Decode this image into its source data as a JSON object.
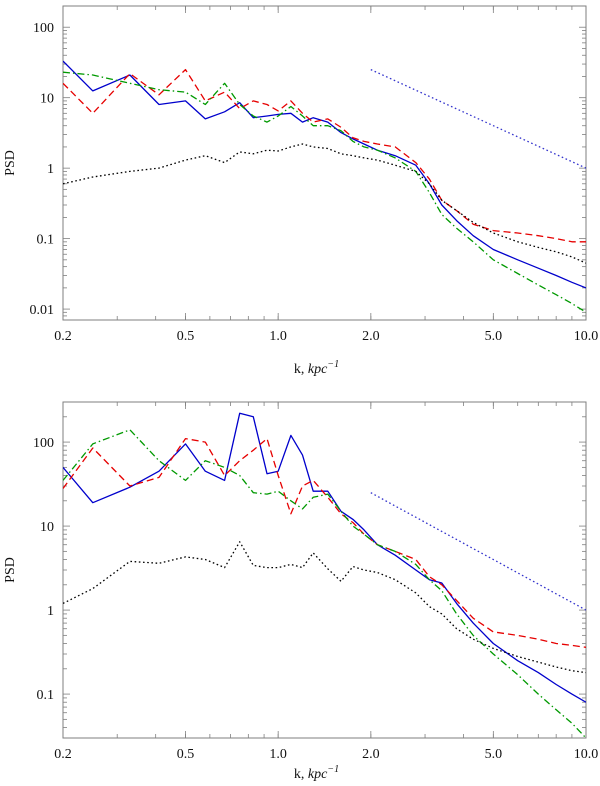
{
  "chart_data": [
    {
      "type": "line",
      "title": "",
      "xlabel": "k, ",
      "xlabel_italic": "kpc",
      "xlabel_sup": "−1",
      "ylabel": "PSD",
      "xscale": "log",
      "yscale": "log",
      "xlim": [
        0.2,
        10.0
      ],
      "ylim": [
        0.007,
        200
      ],
      "x_ticks": [
        {
          "value": 0.2,
          "label": "0.2"
        },
        {
          "value": 0.5,
          "label": "0.5"
        },
        {
          "value": 1.0,
          "label": "1.0"
        },
        {
          "value": 2.0,
          "label": "2.0"
        },
        {
          "value": 5.0,
          "label": "5.0"
        },
        {
          "value": 10.0,
          "label": "10.0"
        }
      ],
      "y_ticks": [
        {
          "value": 0.01,
          "label": "0.01"
        },
        {
          "value": 0.1,
          "label": "0.1"
        },
        {
          "value": 1,
          "label": "1"
        },
        {
          "value": 10,
          "label": "10"
        },
        {
          "value": 100,
          "label": "100"
        }
      ],
      "series": [
        {
          "name": "blue-solid",
          "color": "#0000cc",
          "dash": "",
          "x": [
            0.2,
            0.25,
            0.33,
            0.41,
            0.5,
            0.58,
            0.67,
            0.75,
            0.83,
            0.92,
            1.0,
            1.1,
            1.2,
            1.3,
            1.45,
            1.6,
            1.75,
            1.9,
            2.1,
            2.4,
            2.8,
            3.1,
            3.4,
            3.8,
            4.3,
            5.0,
            6.0,
            7.0,
            8.0,
            9.0,
            10.0
          ],
          "y": [
            33,
            12.5,
            21,
            8,
            9,
            5,
            6.3,
            8.5,
            5.2,
            5.5,
            5.8,
            6,
            4.5,
            5.2,
            4.5,
            3.2,
            2.6,
            2.2,
            1.8,
            1.5,
            1.1,
            0.6,
            0.3,
            0.18,
            0.11,
            0.07,
            0.05,
            0.038,
            0.03,
            0.024,
            0.02
          ]
        },
        {
          "name": "red-dashed",
          "color": "#e60000",
          "dash": "7,4",
          "x": [
            0.2,
            0.25,
            0.33,
            0.41,
            0.5,
            0.58,
            0.67,
            0.75,
            0.83,
            0.92,
            1.0,
            1.1,
            1.2,
            1.3,
            1.45,
            1.6,
            1.75,
            1.9,
            2.1,
            2.4,
            2.8,
            3.1,
            3.4,
            3.8,
            4.3,
            5.0,
            6.0,
            7.0,
            8.0,
            9.0,
            10.0
          ],
          "y": [
            16,
            6,
            22,
            11,
            25,
            9,
            12,
            7,
            9,
            8,
            6.5,
            9,
            6,
            4.5,
            5,
            3.8,
            2.7,
            2.4,
            2.2,
            2.0,
            1.2,
            0.7,
            0.35,
            0.25,
            0.16,
            0.13,
            0.12,
            0.11,
            0.1,
            0.09,
            0.09
          ]
        },
        {
          "name": "green-dashdot",
          "color": "#009900",
          "dash": "7,3,1.5,3",
          "x": [
            0.2,
            0.25,
            0.33,
            0.41,
            0.5,
            0.58,
            0.67,
            0.75,
            0.83,
            0.92,
            1.0,
            1.1,
            1.2,
            1.3,
            1.45,
            1.6,
            1.75,
            1.9,
            2.1,
            2.4,
            2.8,
            3.1,
            3.4,
            3.8,
            4.3,
            5.0,
            6.0,
            7.0,
            8.0,
            9.0,
            10.0
          ],
          "y": [
            23,
            21,
            16,
            13,
            12,
            8,
            16,
            8,
            5.5,
            4.5,
            5.5,
            7.5,
            5.5,
            4,
            4,
            3.4,
            2.4,
            2.0,
            1.8,
            1.4,
            0.9,
            0.45,
            0.22,
            0.14,
            0.09,
            0.05,
            0.032,
            0.022,
            0.016,
            0.012,
            0.009
          ]
        },
        {
          "name": "black-dotted",
          "color": "#000000",
          "dash": "1.6,2.6",
          "x": [
            0.2,
            0.25,
            0.33,
            0.41,
            0.5,
            0.58,
            0.67,
            0.75,
            0.83,
            0.92,
            1.0,
            1.1,
            1.2,
            1.3,
            1.45,
            1.6,
            1.75,
            1.9,
            2.1,
            2.4,
            2.8,
            3.1,
            3.4,
            3.8,
            4.3,
            5.0,
            6.0,
            7.0,
            8.0,
            9.0,
            10.0
          ],
          "y": [
            0.6,
            0.75,
            0.9,
            1.0,
            1.3,
            1.5,
            1.2,
            1.7,
            1.6,
            1.8,
            1.75,
            2.0,
            2.2,
            2.0,
            1.9,
            1.6,
            1.5,
            1.4,
            1.3,
            1.1,
            0.9,
            0.6,
            0.35,
            0.25,
            0.17,
            0.12,
            0.09,
            0.075,
            0.065,
            0.055,
            0.045
          ]
        },
        {
          "name": "slope-reference",
          "color": "#3333cc",
          "dash": "1.6,2.6",
          "x": [
            2.0,
            10.0
          ],
          "y": [
            25,
            1.0
          ]
        }
      ]
    },
    {
      "type": "line",
      "title": "",
      "xlabel": "k, ",
      "xlabel_italic": "kpc",
      "xlabel_sup": "−1",
      "ylabel": "PSD",
      "xscale": "log",
      "yscale": "log",
      "xlim": [
        0.2,
        10.0
      ],
      "ylim": [
        0.03,
        300
      ],
      "x_ticks": [
        {
          "value": 0.2,
          "label": "0.2"
        },
        {
          "value": 0.5,
          "label": "0.5"
        },
        {
          "value": 1.0,
          "label": "1.0"
        },
        {
          "value": 2.0,
          "label": "2.0"
        },
        {
          "value": 5.0,
          "label": "5.0"
        },
        {
          "value": 10.0,
          "label": "10.0"
        }
      ],
      "y_ticks": [
        {
          "value": 0.1,
          "label": "0.1"
        },
        {
          "value": 1,
          "label": "1"
        },
        {
          "value": 10,
          "label": "10"
        },
        {
          "value": 100,
          "label": "100"
        }
      ],
      "series": [
        {
          "name": "blue-solid",
          "color": "#0000cc",
          "dash": "",
          "x": [
            0.2,
            0.25,
            0.33,
            0.41,
            0.5,
            0.58,
            0.67,
            0.75,
            0.83,
            0.92,
            1.0,
            1.1,
            1.2,
            1.3,
            1.45,
            1.6,
            1.75,
            1.9,
            2.1,
            2.4,
            2.8,
            3.1,
            3.4,
            3.8,
            4.3,
            5.0,
            6.0,
            7.0,
            8.0,
            9.0,
            10.0
          ],
          "y": [
            50,
            19,
            29,
            45,
            95,
            45,
            35,
            220,
            200,
            42,
            45,
            120,
            70,
            26,
            26,
            15,
            12,
            9,
            6,
            4.5,
            3,
            2.3,
            2.1,
            1.2,
            0.7,
            0.4,
            0.25,
            0.18,
            0.13,
            0.1,
            0.08
          ]
        },
        {
          "name": "red-dashed",
          "color": "#e60000",
          "dash": "7,4",
          "x": [
            0.2,
            0.25,
            0.33,
            0.41,
            0.5,
            0.58,
            0.67,
            0.75,
            0.83,
            0.92,
            1.0,
            1.1,
            1.2,
            1.3,
            1.45,
            1.6,
            1.75,
            1.9,
            2.1,
            2.4,
            2.8,
            3.1,
            3.4,
            3.8,
            4.3,
            5.0,
            6.0,
            7.0,
            8.0,
            9.0,
            10.0
          ],
          "y": [
            28,
            85,
            30,
            38,
            110,
            100,
            40,
            60,
            80,
            110,
            40,
            14,
            30,
            35,
            22,
            14,
            11,
            8,
            6,
            5,
            4,
            2.5,
            2,
            1.3,
            0.8,
            0.55,
            0.5,
            0.45,
            0.4,
            0.38,
            0.36
          ]
        },
        {
          "name": "green-dashdot",
          "color": "#009900",
          "dash": "7,3,1.5,3",
          "x": [
            0.2,
            0.25,
            0.33,
            0.41,
            0.5,
            0.58,
            0.67,
            0.75,
            0.83,
            0.92,
            1.0,
            1.1,
            1.2,
            1.3,
            1.45,
            1.6,
            1.75,
            1.9,
            2.1,
            2.4,
            2.8,
            3.1,
            3.4,
            3.8,
            4.3,
            5.0,
            6.0,
            7.0,
            8.0,
            9.0,
            10.0
          ],
          "y": [
            35,
            95,
            140,
            60,
            35,
            60,
            50,
            40,
            25,
            24,
            26,
            20,
            16,
            22,
            24,
            15,
            10,
            8,
            6,
            5,
            3.5,
            2.3,
            1.7,
            0.9,
            0.5,
            0.3,
            0.17,
            0.1,
            0.065,
            0.045,
            0.03
          ]
        },
        {
          "name": "black-dotted",
          "color": "#000000",
          "dash": "1.6,2.6",
          "x": [
            0.2,
            0.25,
            0.33,
            0.41,
            0.5,
            0.58,
            0.67,
            0.75,
            0.83,
            0.92,
            1.0,
            1.1,
            1.2,
            1.3,
            1.45,
            1.6,
            1.75,
            1.9,
            2.1,
            2.4,
            2.8,
            3.1,
            3.4,
            3.8,
            4.3,
            5.0,
            6.0,
            7.0,
            8.0,
            9.0,
            10.0
          ],
          "y": [
            1.2,
            1.8,
            3.8,
            3.6,
            4.3,
            4.0,
            3.2,
            6.5,
            3.4,
            3.2,
            3.2,
            3.5,
            3.2,
            4.8,
            3.1,
            2.2,
            3.3,
            3.0,
            2.8,
            2.3,
            1.6,
            1.1,
            0.9,
            0.6,
            0.45,
            0.35,
            0.28,
            0.24,
            0.21,
            0.19,
            0.18
          ]
        },
        {
          "name": "slope-reference",
          "color": "#3333cc",
          "dash": "1.6,2.6",
          "x": [
            2.0,
            10.0
          ],
          "y": [
            25,
            1.0
          ]
        }
      ]
    }
  ]
}
